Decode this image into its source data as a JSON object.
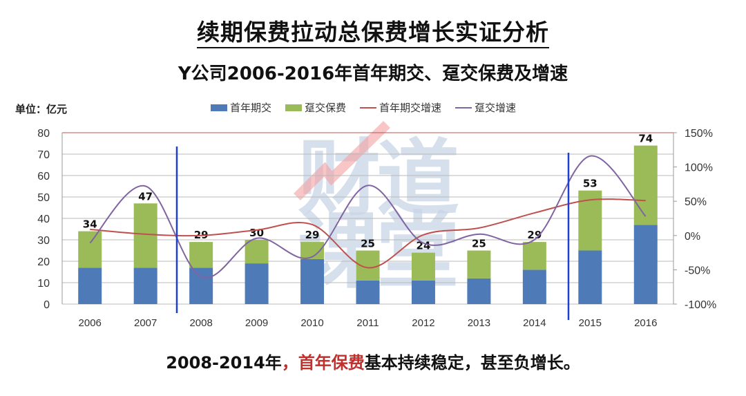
{
  "header": {
    "title": "续期保费拉动总保费增长实证分析",
    "subtitle": "Y公司2006-2016年首年期交、趸交保费及增速"
  },
  "unit_label": "单位：亿元",
  "legend": [
    {
      "label": "首年期交",
      "type": "bar",
      "color": "#4f7ab8"
    },
    {
      "label": "趸交保费",
      "type": "bar",
      "color": "#9bbb59"
    },
    {
      "label": "首年期交增速",
      "type": "line",
      "color": "#c0504d"
    },
    {
      "label": "趸交增速",
      "type": "line",
      "color": "#8064a2"
    }
  ],
  "watermark": "财道课堂",
  "footer": {
    "prefix": "2008-2014年",
    "comma": "，",
    "highlight": "首年保费",
    "suffix": "基本持续稳定，甚至负增长。"
  },
  "chart_data": {
    "type": "bar",
    "title": "Y公司2006-2016年首年期交、趸交保费及增速",
    "xlabel": "",
    "ylabel": "亿元",
    "categories": [
      "2006",
      "2007",
      "2008",
      "2009",
      "2010",
      "2011",
      "2012",
      "2013",
      "2014",
      "2015",
      "2016"
    ],
    "ylim": [
      0,
      80
    ],
    "yticks": [
      0,
      10,
      20,
      30,
      40,
      50,
      60,
      70,
      80
    ],
    "y2lim": [
      -100,
      150
    ],
    "y2ticks": [
      "-100%",
      "-50%",
      "0%",
      "50%",
      "100%",
      "150%"
    ],
    "y2tick_values": [
      -100,
      -50,
      0,
      50,
      100,
      150
    ],
    "stacked": true,
    "series": [
      {
        "name": "首年期交",
        "type": "bar",
        "axis": "left",
        "color": "#4f7ab8",
        "values": [
          17,
          17,
          17,
          19,
          21,
          11,
          11,
          12,
          16,
          25,
          37
        ]
      },
      {
        "name": "趸交保费",
        "type": "bar",
        "axis": "left",
        "color": "#9bbb59",
        "values": [
          17,
          30,
          12,
          11,
          8,
          14,
          13,
          13,
          13,
          28,
          37
        ]
      },
      {
        "name": "首年期交增速",
        "type": "line",
        "axis": "right",
        "unit": "%",
        "color": "#c0504d",
        "values": [
          9,
          2,
          0,
          8,
          16,
          -47,
          1,
          11,
          33,
          52,
          51
        ]
      },
      {
        "name": "趸交增速",
        "type": "line",
        "axis": "right",
        "unit": "%",
        "color": "#8064a2",
        "values": [
          -11,
          72,
          -60,
          -4,
          -31,
          73,
          -11,
          2,
          -6,
          116,
          28
        ]
      }
    ],
    "total_labels": [
      34,
      47,
      29,
      30,
      29,
      25,
      24,
      25,
      29,
      53,
      74
    ],
    "annotations": [
      {
        "type": "vertical-line",
        "between": [
          "2007",
          "2008"
        ],
        "color": "#1f3fd0"
      },
      {
        "type": "vertical-line",
        "between": [
          "2014",
          "2015"
        ],
        "color": "#1f3fd0"
      }
    ],
    "grid": true,
    "legend_position": "top"
  }
}
